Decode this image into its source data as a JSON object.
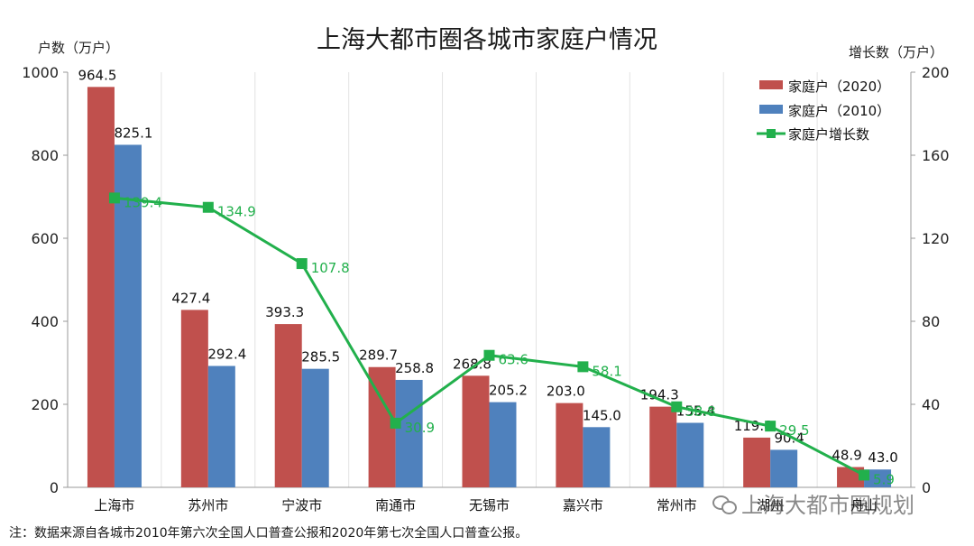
{
  "title": "上海大都市圈各城市家庭户情况",
  "note": "注：数据来源自各城市2010年第六次全国人口普查公报和2020年第七次全国人口普查公报。",
  "watermark": "上海大都市圈规划",
  "colors": {
    "bar2020": "#c0504d",
    "bar2010": "#4f81bd",
    "line": "#22b04c",
    "axis": "#999999"
  },
  "chart_data": {
    "type": "bar",
    "categories": [
      "上海市",
      "苏州市",
      "宁波市",
      "南通市",
      "无锡市",
      "嘉兴市",
      "常州市",
      "湖州",
      "舟山"
    ],
    "series": [
      {
        "name": "家庭户（2020）",
        "type": "bar",
        "axis": "left",
        "values": [
          964.5,
          427.4,
          393.3,
          289.7,
          268.8,
          203.0,
          194.3,
          119.8,
          48.9
        ]
      },
      {
        "name": "家庭户（2010）",
        "type": "bar",
        "axis": "left",
        "values": [
          825.1,
          292.4,
          285.5,
          258.8,
          205.2,
          145.0,
          155.4,
          90.4,
          43.0
        ]
      },
      {
        "name": "家庭户增长数",
        "type": "line",
        "axis": "right",
        "values": [
          139.4,
          134.9,
          107.8,
          30.9,
          63.6,
          58.1,
          38.8,
          29.5,
          5.9
        ]
      }
    ],
    "yleft": {
      "label": "户数（万户）",
      "ylim": [
        0,
        1000
      ],
      "ticks": [
        "0",
        "200",
        "400",
        "600",
        "800",
        "1000"
      ]
    },
    "yright": {
      "label": "增长数（万户）",
      "ylim": [
        0,
        200
      ],
      "ticks": [
        "0",
        "40",
        "80",
        "120",
        "160",
        "200"
      ]
    },
    "legend": "top-right",
    "grid": true
  }
}
